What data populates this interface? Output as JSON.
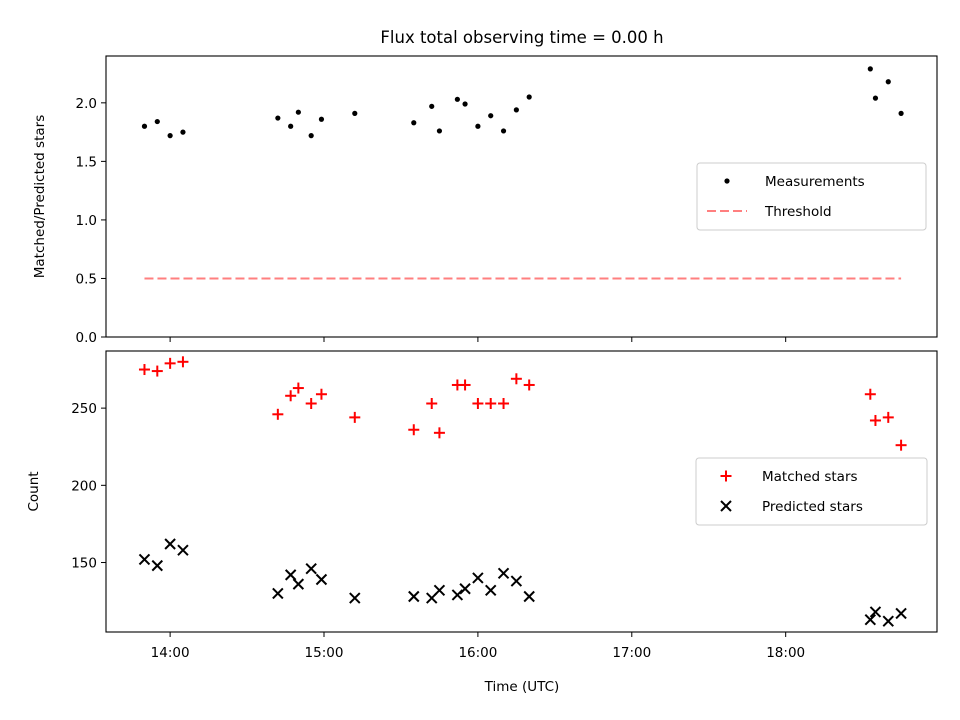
{
  "chart_data": {
    "title": "Flux total observing time = 0.00 h",
    "xlabel": "Time (UTC)",
    "x_tick_labels": [
      "14:00",
      "15:00",
      "16:00",
      "17:00",
      "18:00"
    ],
    "x_ticks": [
      "14:00",
      "15:00",
      "16:00",
      "17:00",
      "18:00"
    ],
    "xlim": [
      "13:35",
      "18:59"
    ],
    "panels": [
      {
        "type": "scatter",
        "ylabel": "Matched/Predicted stars",
        "ylim": [
          0,
          2.4
        ],
        "y_ticks": [
          0.0,
          0.5,
          1.0,
          1.5,
          2.0
        ],
        "y_tick_labels": [
          "0.0",
          "0.5",
          "1.0",
          "1.5",
          "2.0"
        ],
        "grid": false,
        "legend_position": "center-right",
        "series": [
          {
            "name": "Measurements",
            "marker": "dot",
            "color": "#000000",
            "points": [
              [
                "13:50",
                1.8
              ],
              [
                "13:55",
                1.84
              ],
              [
                "14:00",
                1.72
              ],
              [
                "14:05",
                1.75
              ],
              [
                "14:42",
                1.87
              ],
              [
                "14:47",
                1.8
              ],
              [
                "14:50",
                1.92
              ],
              [
                "14:55",
                1.72
              ],
              [
                "14:59",
                1.86
              ],
              [
                "15:12",
                1.91
              ],
              [
                "15:35",
                1.83
              ],
              [
                "15:42",
                1.97
              ],
              [
                "15:45",
                1.76
              ],
              [
                "15:52",
                2.03
              ],
              [
                "15:55",
                1.99
              ],
              [
                "16:00",
                1.8
              ],
              [
                "16:05",
                1.89
              ],
              [
                "16:10",
                1.76
              ],
              [
                "16:15",
                1.94
              ],
              [
                "16:20",
                2.05
              ],
              [
                "18:33",
                2.29
              ],
              [
                "18:35",
                2.04
              ],
              [
                "18:40",
                2.18
              ],
              [
                "18:45",
                1.91
              ]
            ]
          },
          {
            "name": "Threshold",
            "style": "dashed-line",
            "color": "#ff7f7f",
            "points": [
              [
                "13:50",
                0.5
              ],
              [
                "18:45",
                0.5
              ]
            ]
          }
        ]
      },
      {
        "type": "scatter",
        "ylabel": "Count",
        "ylim": [
          105,
          287
        ],
        "y_ticks": [
          150,
          200,
          250
        ],
        "y_tick_labels": [
          "150",
          "200",
          "250"
        ],
        "grid": false,
        "legend_position": "center-right",
        "series": [
          {
            "name": "Matched stars",
            "marker": "plus",
            "color": "#ff0000",
            "points": [
              [
                "13:50",
                275
              ],
              [
                "13:55",
                274
              ],
              [
                "14:00",
                279
              ],
              [
                "14:05",
                280
              ],
              [
                "14:42",
                246
              ],
              [
                "14:47",
                258
              ],
              [
                "14:50",
                263
              ],
              [
                "14:55",
                253
              ],
              [
                "14:59",
                259
              ],
              [
                "15:12",
                244
              ],
              [
                "15:35",
                236
              ],
              [
                "15:42",
                253
              ],
              [
                "15:45",
                234
              ],
              [
                "15:52",
                265
              ],
              [
                "15:55",
                265
              ],
              [
                "16:00",
                253
              ],
              [
                "16:05",
                253
              ],
              [
                "16:10",
                253
              ],
              [
                "16:15",
                269
              ],
              [
                "16:20",
                265
              ],
              [
                "18:33",
                259
              ],
              [
                "18:35",
                242
              ],
              [
                "18:40",
                244
              ],
              [
                "18:45",
                226
              ]
            ]
          },
          {
            "name": "Predicted stars",
            "marker": "x",
            "color": "#000000",
            "points": [
              [
                "13:50",
                152
              ],
              [
                "13:55",
                148
              ],
              [
                "14:00",
                162
              ],
              [
                "14:05",
                158
              ],
              [
                "14:42",
                130
              ],
              [
                "14:47",
                142
              ],
              [
                "14:50",
                136
              ],
              [
                "14:55",
                146
              ],
              [
                "14:59",
                139
              ],
              [
                "15:12",
                127
              ],
              [
                "15:35",
                128
              ],
              [
                "15:42",
                127
              ],
              [
                "15:45",
                132
              ],
              [
                "15:52",
                129
              ],
              [
                "15:55",
                133
              ],
              [
                "16:00",
                140
              ],
              [
                "16:05",
                132
              ],
              [
                "16:10",
                143
              ],
              [
                "16:15",
                138
              ],
              [
                "16:20",
                128
              ],
              [
                "18:33",
                113
              ],
              [
                "18:35",
                118
              ],
              [
                "18:40",
                112
              ],
              [
                "18:45",
                117
              ]
            ]
          }
        ]
      }
    ]
  }
}
